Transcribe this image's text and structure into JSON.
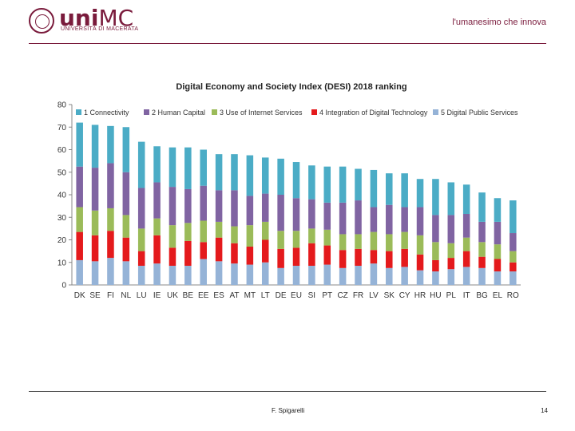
{
  "header": {
    "brand_main": "uni",
    "brand_mc": "MC",
    "brand_sub": "UNIVERSITÀ DI MACERATA",
    "tagline": "l'umanesimo che innova"
  },
  "footer": {
    "author": "F. Spigarelli",
    "page_number": "14"
  },
  "colors": {
    "accent": "#7a1b3c",
    "series": [
      "#4bacc6",
      "#8064a2",
      "#9bbb59",
      "#e41a1c",
      "#95b3d7"
    ]
  },
  "chart_data": {
    "type": "bar",
    "stacked": true,
    "title": "Digital Economy and Society Index (DESI) 2018 ranking",
    "xlabel": "",
    "ylabel": "",
    "ylim": [
      0,
      80
    ],
    "yticks": [
      0,
      10,
      20,
      30,
      40,
      50,
      60,
      70,
      80
    ],
    "grid": false,
    "legend_position": "top",
    "categories": [
      "DK",
      "SE",
      "FI",
      "NL",
      "LU",
      "IE",
      "UK",
      "BE",
      "EE",
      "ES",
      "AT",
      "MT",
      "LT",
      "DE",
      "EU",
      "SI",
      "PT",
      "CZ",
      "FR",
      "LV",
      "SK",
      "CY",
      "HR",
      "HU",
      "PL",
      "IT",
      "BG",
      "EL",
      "RO"
    ],
    "series": [
      {
        "name": "5 Digital Public Services",
        "values": [
          11,
          10.5,
          12,
          10.5,
          8.5,
          9.5,
          8.5,
          8.5,
          11.5,
          10.5,
          9.5,
          9,
          10,
          7.5,
          8.5,
          8.5,
          9,
          7.5,
          8.5,
          9.5,
          7.5,
          8,
          6.5,
          6,
          7,
          8,
          7.5,
          6,
          6
        ]
      },
      {
        "name": "4 Integration of Digital Technology",
        "values": [
          12.5,
          11.5,
          12,
          10.5,
          6.5,
          12.5,
          8,
          11,
          7.5,
          10.5,
          9,
          8,
          10,
          8.5,
          8,
          10,
          8.5,
          8,
          7.5,
          6,
          7.5,
          8,
          7,
          5,
          5,
          7,
          5,
          5.5,
          4
        ]
      },
      {
        "name": "3 Use of Internet Services",
        "values": [
          11,
          11,
          10,
          10,
          10,
          7.5,
          10,
          8,
          9.5,
          7,
          7.5,
          9.5,
          8,
          8,
          7.5,
          6.5,
          7,
          7,
          6.5,
          8,
          7.5,
          7.5,
          8.5,
          8,
          6.5,
          6,
          6.5,
          6.5,
          5
        ]
      },
      {
        "name": "2 Human Capital",
        "values": [
          18,
          19,
          20,
          19,
          18,
          16,
          17,
          15,
          15.5,
          14,
          16,
          13,
          12.5,
          16,
          14.5,
          13,
          12,
          14,
          15,
          11,
          13,
          11,
          12.5,
          12,
          12.5,
          10.5,
          9,
          10,
          8
        ]
      },
      {
        "name": "1 Connectivity",
        "values": [
          19.5,
          19,
          16.5,
          20,
          20.5,
          16,
          17.5,
          18.5,
          16,
          16,
          16,
          18,
          16,
          16,
          16,
          15,
          16,
          16,
          14,
          16.5,
          14,
          15,
          12.5,
          16,
          14.5,
          13,
          13,
          10.5,
          14.5
        ]
      }
    ],
    "legend_order": [
      "1 Connectivity",
      "2 Human Capital",
      "3 Use of Internet Services",
      "4 Integration of Digital Technology",
      "5 Digital Public Services"
    ]
  }
}
